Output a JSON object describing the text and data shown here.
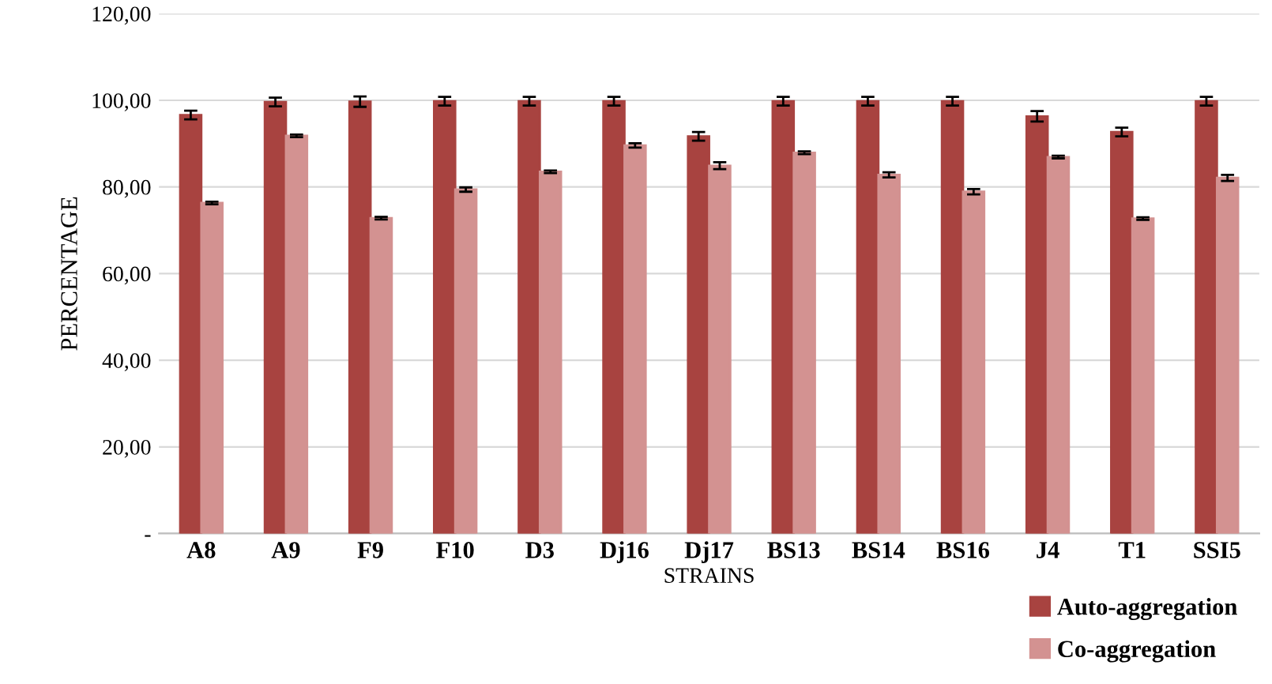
{
  "chart_data": {
    "type": "bar",
    "xlabel": "STRAINS",
    "ylabel": "PERCENTAGE",
    "categories": [
      "A8",
      "A9",
      "F9",
      "F10",
      "D3",
      "Dj16",
      "Dj17",
      "BS13",
      "BS14",
      "BS16",
      "J4",
      "T1",
      "SSI5"
    ],
    "series": [
      {
        "name": "Auto-aggregation",
        "color": "#a84340",
        "values": [
          96.6,
          99.6,
          99.7,
          99.8,
          99.8,
          99.8,
          91.7,
          99.8,
          99.8,
          99.8,
          96.3,
          92.7,
          99.8
        ],
        "errors": [
          1,
          1,
          1.2,
          1,
          1,
          1,
          1,
          1,
          1,
          1,
          1.2,
          1,
          1
        ]
      },
      {
        "name": "Co-aggregation",
        "color": "#d39291",
        "values": [
          76.3,
          91.8,
          72.8,
          79.4,
          83.5,
          89.6,
          84.9,
          87.9,
          82.8,
          78.9,
          86.9,
          72.7,
          82.1
        ],
        "errors": [
          0.3,
          0.3,
          0.3,
          0.5,
          0.3,
          0.5,
          0.8,
          0.3,
          0.6,
          0.6,
          0.3,
          0.3,
          0.7
        ]
      }
    ],
    "ylim": [
      0,
      120
    ],
    "yticks": [
      {
        "value": 0,
        "label": "-"
      },
      {
        "value": 20,
        "label": "20,00"
      },
      {
        "value": 40,
        "label": "40,00"
      },
      {
        "value": 60,
        "label": "60,00"
      },
      {
        "value": 80,
        "label": "80,00"
      },
      {
        "value": 100,
        "label": "100,00"
      },
      {
        "value": 120,
        "label": "120,00"
      }
    ],
    "grid": "y",
    "legend": "bottom right"
  }
}
